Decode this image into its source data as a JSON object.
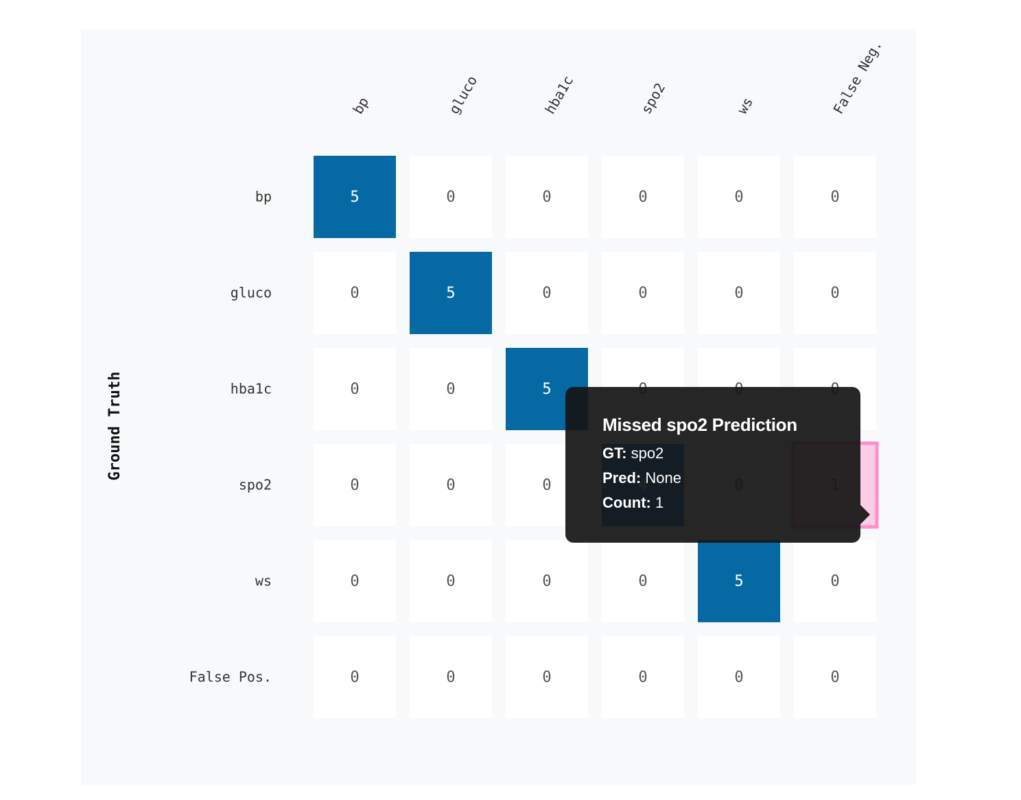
{
  "chart_data": {
    "type": "heatmap",
    "title": "",
    "ylabel": "Ground Truth",
    "xlabel": "",
    "x_categories": [
      "bp",
      "gluco",
      "hba1c",
      "spo2",
      "ws",
      "False Neg."
    ],
    "y_categories": [
      "bp",
      "gluco",
      "hba1c",
      "spo2",
      "ws",
      "False Pos."
    ],
    "values": [
      [
        5,
        0,
        0,
        0,
        0,
        0
      ],
      [
        0,
        5,
        0,
        0,
        0,
        0
      ],
      [
        0,
        0,
        5,
        0,
        0,
        0
      ],
      [
        0,
        0,
        0,
        4,
        0,
        1
      ],
      [
        0,
        0,
        0,
        0,
        5,
        0
      ],
      [
        0,
        0,
        0,
        0,
        0,
        0
      ]
    ],
    "highlighted_cell": {
      "row": 3,
      "col": 5
    },
    "colors": {
      "max_cell": "#0669a3",
      "high_cell": "#0a85cc",
      "zero_cell": "#ffffff",
      "highlight_fill": "#fccde6",
      "highlight_border": "#ff8fcb",
      "zero_text": "#555555",
      "dark_text": "#ffffff"
    }
  },
  "tooltip": {
    "title": "Missed spo2 Prediction",
    "gt_key": "GT:",
    "gt_value": "spo2",
    "pred_key": "Pred:",
    "pred_value": "None",
    "count_key": "Count:",
    "count_value": "1"
  }
}
